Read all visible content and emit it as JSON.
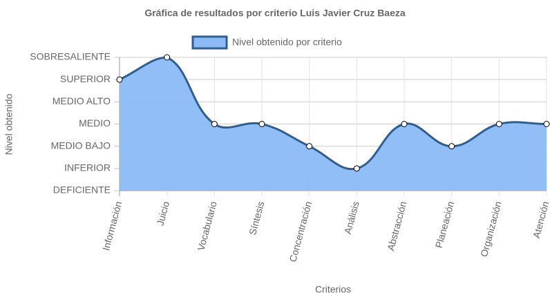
{
  "chart_data": {
    "type": "area",
    "title": "Gráfica de resultados por criterio Luis Javier Cruz Baeza",
    "x_label": "Criterios",
    "y_label": "Nivel obtenido",
    "categories": [
      "Información",
      "Juicio",
      "Vocabulario",
      "Síntesis",
      "Concentración",
      "Análisis",
      "Abstracción",
      "Planeación",
      "Organización",
      "Atención"
    ],
    "series": [
      {
        "name": "Nivel obtenido por criterio",
        "color": "#2f5e91",
        "fill": "#8bbaf5",
        "values": [
          5,
          6,
          3,
          3,
          2,
          1,
          3,
          2,
          3,
          3
        ]
      }
    ],
    "ylim": [
      0,
      6
    ],
    "yticks": [
      {
        "value": 0,
        "label": "DEFICIENTE"
      },
      {
        "value": 1,
        "label": "INFERIOR"
      },
      {
        "value": 2,
        "label": "MEDIO BAJO"
      },
      {
        "value": 3,
        "label": "MEDIO"
      },
      {
        "value": 4,
        "label": "MEDIO ALTO"
      },
      {
        "value": 5,
        "label": "SUPERIOR"
      },
      {
        "value": 6,
        "label": "SOBRESALIENTE"
      }
    ],
    "grid": true,
    "legend": "top"
  }
}
